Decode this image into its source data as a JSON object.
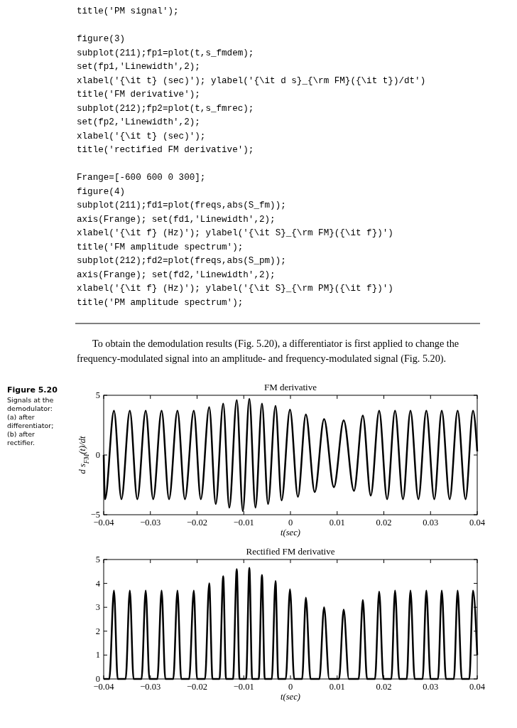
{
  "chart_data": [
    {
      "type": "line",
      "title": "FM derivative",
      "xlabel": "t(sec)",
      "ylabel": "d s$_{FM}$(t)/dt",
      "annotations": [
        "title('PM signal');",
        "figure(3)",
        "subplot(211);fp1=plot(t,s_fmdem);",
        "set(fp1,'Linewidth',2);",
        "xlabel('{\\it t} (sec)'); ylabel('{\\it d s}_{\\rm FM}({\\it t})/dt')",
        "title('FM derivative');",
        "subplot(212);fp2=plot(t,s_fmrec);",
        "set(fp2,'Linewidth',2);",
        "xlabel('{\\it t} (sec)');",
        "title('rectified FM derivative');",
        "Frange=[-600 600 0 300];",
        "figure(4)",
        "subplot(211);fd1=plot(freqs,abs(S_fm));",
        "axis(Frange); set(fd1,'Linewidth',2);",
        "xlabel('{\\it f} (Hz)'); ylabel('{\\it S}_{\\rm FM}({\\it f})')",
        "title('FM amplitude spectrum');",
        "subplot(212);fd2=plot(freqs,abs(S_pm));",
        "axis(Frange); set(fd2,'Linewidth',2);",
        "xlabel('{\\it f} (Hz)'); ylabel('{\\it S}_{\\rm PM}({\\it f})')",
        "title('PM amplitude spectrum');",
        "To obtain the demodulation results (Fig. 5.20), a differentiator is first applied to change the",
        "frequency-modulated signal into an amplitude- and frequency-modulated signal (Fig. 5.20).",
        "Figure 5.20",
        "Signals at the demodulator: (a) after differentiator; (b) after rectifier."
      ],
      "x": [
        -0.04,
        -0.0397,
        -0.0378,
        -0.0362,
        -0.0344,
        -0.0328,
        -0.031,
        -0.0294,
        -0.0276,
        -0.026,
        -0.0242,
        -0.0226,
        -0.0207,
        -0.0192,
        -0.0174,
        -0.016,
        -0.0144,
        -0.0131,
        -0.0115,
        -0.0102,
        -0.0088,
        -0.0075,
        -0.0061,
        -0.0048,
        -0.0032,
        -0.0019,
        -0.0001,
        0.0016,
        0.0033,
        0.0052,
        0.0072,
        0.0093,
        0.0114,
        0.0136,
        0.0155,
        0.0172,
        0.019,
        0.0207,
        0.0224,
        0.0241,
        0.0257,
        0.0274,
        0.0291,
        0.0308,
        0.0324,
        0.0341,
        0.0358,
        0.0375,
        0.0391,
        0.04
      ],
      "series": [
        {
          "color": "#000000",
          "values": [
            0,
            -3.7,
            3.7,
            -3.7,
            3.7,
            -3.7,
            3.7,
            -3.7,
            3.7,
            -3.7,
            3.7,
            -3.7,
            3.7,
            -3.7,
            4.0,
            -4.1,
            4.3,
            -4.4,
            4.6,
            -4.7,
            4.7,
            -4.4,
            4.3,
            -4.1,
            4.1,
            -3.8,
            3.8,
            -3.5,
            3.4,
            -3.1,
            3.0,
            -2.7,
            2.9,
            -3.0,
            3.3,
            -3.4,
            3.7,
            -3.7,
            3.7,
            -3.7,
            3.7,
            -3.7,
            3.7,
            -3.7,
            3.7,
            -3.7,
            3.7,
            -3.7,
            3.7,
            0.3
          ]
        }
      ],
      "xlim": [
        -0.04,
        0.04
      ],
      "xticks": [
        -0.04,
        -0.03,
        -0.02,
        -0.01,
        0,
        0.01,
        0.02,
        0.03,
        0.04
      ],
      "ylim": [
        -5,
        5
      ],
      "yticks": [
        -5,
        0,
        5
      ]
    },
    {
      "type": "line",
      "title": "Rectified FM derivative",
      "xlabel": "t(sec)",
      "x": [
        -0.04,
        -0.0388,
        -0.0378,
        -0.037,
        -0.0353,
        -0.0344,
        -0.0336,
        -0.0319,
        -0.031,
        -0.0302,
        -0.0285,
        -0.0276,
        -0.0268,
        -0.0251,
        -0.0242,
        -0.0234,
        -0.0217,
        -0.0207,
        -0.02,
        -0.0183,
        -0.0174,
        -0.0167,
        -0.0152,
        -0.0144,
        -0.0138,
        -0.0123,
        -0.0115,
        -0.0109,
        -0.0095,
        -0.0088,
        -0.0082,
        -0.0068,
        -0.0061,
        -0.0055,
        -0.004,
        -0.0032,
        -0.0026,
        -0.001,
        -0.0001,
        0.0008,
        0.0025,
        0.0033,
        0.0043,
        0.0062,
        0.0072,
        0.0083,
        0.0104,
        0.0114,
        0.0125,
        0.0146,
        0.0155,
        0.0164,
        0.0181,
        0.019,
        0.0199,
        0.0216,
        0.0224,
        0.0233,
        0.0249,
        0.0257,
        0.0266,
        0.0283,
        0.0291,
        0.03,
        0.0316,
        0.0324,
        0.0333,
        0.035,
        0.0358,
        0.0367,
        0.0383,
        0.0391,
        0.04
      ],
      "series": [
        {
          "color": "#000000",
          "values": [
            0,
            0,
            3.7,
            0,
            0,
            3.7,
            0,
            0,
            3.7,
            0,
            0,
            3.7,
            0,
            0,
            3.7,
            0,
            0,
            3.7,
            0,
            0,
            4.0,
            0,
            0,
            4.3,
            0,
            0,
            4.6,
            0,
            0,
            4.65,
            0,
            0,
            4.35,
            0,
            0,
            4.1,
            0,
            0,
            3.75,
            0,
            0,
            3.4,
            0,
            0,
            3.0,
            0,
            0,
            2.9,
            0,
            0,
            3.3,
            0,
            0,
            3.65,
            0,
            0,
            3.7,
            0,
            0,
            3.7,
            0,
            0,
            3.7,
            0,
            0,
            3.7,
            0,
            0,
            3.7,
            0,
            0,
            3.7,
            1
          ]
        }
      ],
      "xlim": [
        -0.04,
        0.04
      ],
      "xticks": [
        -0.04,
        -0.03,
        -0.02,
        -0.01,
        0,
        0.01,
        0.02,
        0.03,
        0.04
      ],
      "ylim": [
        0,
        5
      ],
      "yticks": [
        0,
        1,
        2,
        3,
        4,
        5
      ]
    }
  ]
}
